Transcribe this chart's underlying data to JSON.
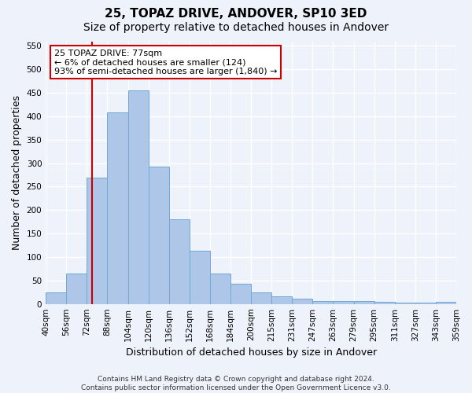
{
  "title": "25, TOPAZ DRIVE, ANDOVER, SP10 3ED",
  "subtitle": "Size of property relative to detached houses in Andover",
  "xlabel": "Distribution of detached houses by size in Andover",
  "ylabel": "Number of detached properties",
  "bin_labels": [
    "40sqm",
    "56sqm",
    "72sqm",
    "88sqm",
    "104sqm",
    "120sqm",
    "136sqm",
    "152sqm",
    "168sqm",
    "184sqm",
    "200sqm",
    "215sqm",
    "231sqm",
    "247sqm",
    "263sqm",
    "279sqm",
    "295sqm",
    "311sqm",
    "327sqm",
    "343sqm",
    "359sqm"
  ],
  "bar_values": [
    25,
    65,
    270,
    408,
    455,
    293,
    180,
    113,
    65,
    43,
    25,
    17,
    12,
    7,
    6,
    6,
    4,
    3,
    2,
    4
  ],
  "bar_color": "#aec6e8",
  "bar_edge_color": "#6fa8d6",
  "property_sqm": 77,
  "vline_x": 2.25,
  "annotation_text": "25 TOPAZ DRIVE: 77sqm\n← 6% of detached houses are smaller (124)\n93% of semi-detached houses are larger (1,840) →",
  "annotation_box_color": "#ffffff",
  "annotation_box_edge_color": "#cc0000",
  "vline_color": "#cc0000",
  "ylim": [
    0,
    560
  ],
  "yticks": [
    0,
    50,
    100,
    150,
    200,
    250,
    300,
    350,
    400,
    450,
    500,
    550
  ],
  "footer_text": "Contains HM Land Registry data © Crown copyright and database right 2024.\nContains public sector information licensed under the Open Government Licence v3.0.",
  "background_color": "#eef2fa",
  "grid_color": "#ffffff",
  "title_fontsize": 11,
  "subtitle_fontsize": 10,
  "tick_fontsize": 7.5,
  "ylabel_fontsize": 9,
  "xlabel_fontsize": 9,
  "footer_fontsize": 6.5,
  "annotation_fontsize": 8
}
